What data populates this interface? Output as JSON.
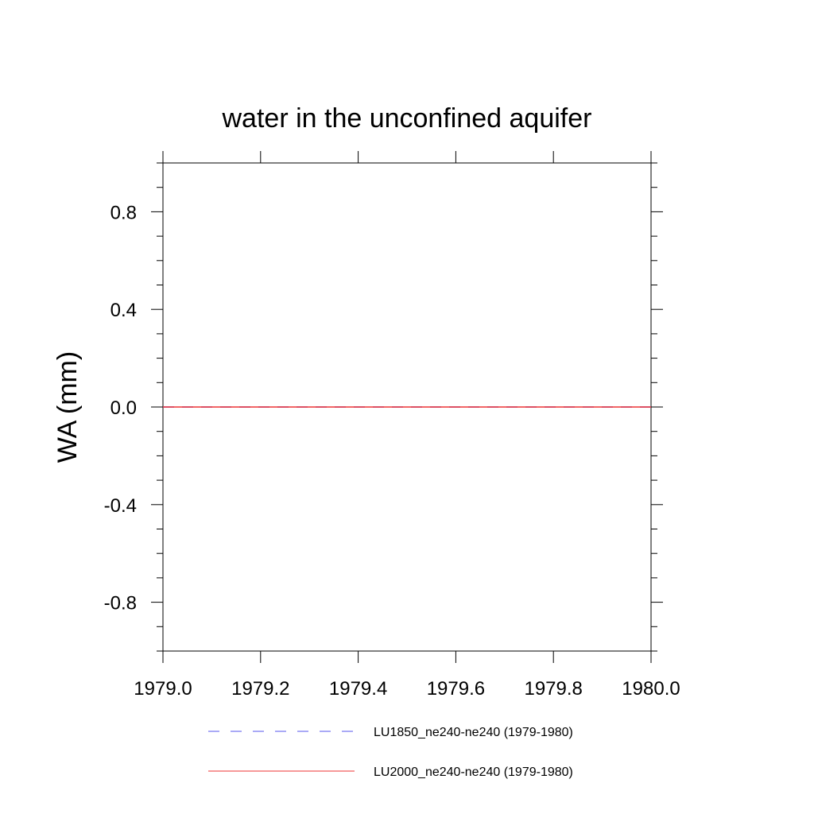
{
  "chart_data": {
    "type": "line",
    "title": "water in the unconfined aquifer",
    "xlabel": "",
    "ylabel": "WA  (mm)",
    "xlim": [
      1979.0,
      1980.0
    ],
    "ylim": [
      -1.0,
      1.0
    ],
    "x_ticks": [
      1979.0,
      1979.2,
      1979.4,
      1979.6,
      1979.8,
      1980.0
    ],
    "x_tick_labels": [
      "1979.0",
      "1979.2",
      "1979.4",
      "1979.6",
      "1979.8",
      "1980.0"
    ],
    "x_minor_ticks": [],
    "y_ticks": [
      -0.8,
      -0.4,
      0.0,
      0.4,
      0.8
    ],
    "y_tick_labels": [
      "-0.8",
      "-0.4",
      "0.0",
      "0.4",
      "0.8"
    ],
    "y_minor_ticks": [
      -1.0,
      -0.9,
      -0.7,
      -0.6,
      -0.5,
      -0.3,
      -0.2,
      -0.1,
      0.1,
      0.2,
      0.3,
      0.5,
      0.6,
      0.7,
      0.9,
      1.0
    ],
    "grid": false,
    "legend_position": "bottom",
    "series": [
      {
        "name": "LU1850_ne240-ne240 (1979-1980)",
        "color": "#5555ee",
        "style": "dashed",
        "x": [
          1979.0,
          1980.0
        ],
        "values": [
          0.0,
          0.0
        ]
      },
      {
        "name": "LU2000_ne240-ne240 (1979-1980)",
        "color": "#ee3333",
        "style": "solid",
        "x": [
          1979.0,
          1980.0
        ],
        "values": [
          0.0,
          0.0
        ]
      }
    ]
  }
}
